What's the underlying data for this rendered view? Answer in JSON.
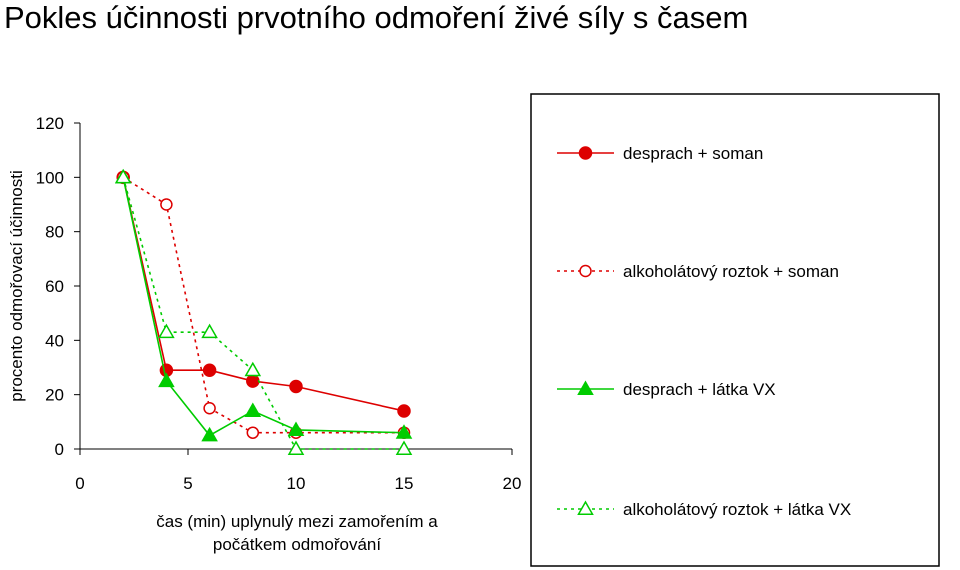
{
  "title": "Pokles účinnosti prvotního odmoření živé síly s časem",
  "chart_data": {
    "type": "line",
    "title": "Pokles účinnosti prvotního odmoření živé síly s časem",
    "xlabel_lines": [
      "čas (min) uplynulý mezi zamořením a",
      "počátkem odmořování"
    ],
    "ylabel": "procento odmořovací účinnosti",
    "xlim": [
      0,
      20
    ],
    "ylim": [
      0,
      120
    ],
    "x_ticks": [
      0,
      5,
      10,
      15,
      20
    ],
    "y_ticks": [
      0,
      20,
      40,
      60,
      80,
      100,
      120
    ],
    "x_tick_labels": [
      "0",
      "5",
      "10",
      "15",
      "20"
    ],
    "y_tick_labels": [
      "0",
      "20",
      "40",
      "60",
      "80",
      "100",
      "120"
    ],
    "grid": false,
    "legend_position": "right",
    "series": [
      {
        "name": "desprach + soman",
        "color": "#dd0000",
        "line_style": "solid",
        "marker": "circle-filled",
        "x": [
          2,
          4,
          6,
          8,
          10,
          15
        ],
        "y": [
          100,
          29,
          29,
          25,
          23,
          14
        ]
      },
      {
        "name": "alkoholátový roztok + soman",
        "color": "#dd0000",
        "line_style": "dotted",
        "marker": "circle-open",
        "x": [
          2,
          4,
          6,
          8,
          10,
          15
        ],
        "y": [
          100,
          90,
          15,
          6,
          6,
          6
        ]
      },
      {
        "name": "desprach + látka VX",
        "color": "#00cc00",
        "line_style": "solid",
        "marker": "triangle-filled",
        "x": [
          2,
          4,
          6,
          8,
          10,
          15
        ],
        "y": [
          100,
          25,
          5,
          14,
          7,
          6
        ]
      },
      {
        "name": "alkoholátový roztok + látka VX",
        "color": "#00cc00",
        "line_style": "dotted",
        "marker": "triangle-open",
        "x": [
          2,
          4,
          6,
          8,
          10,
          15
        ],
        "y": [
          100,
          43,
          43,
          29,
          0,
          0
        ]
      }
    ]
  }
}
